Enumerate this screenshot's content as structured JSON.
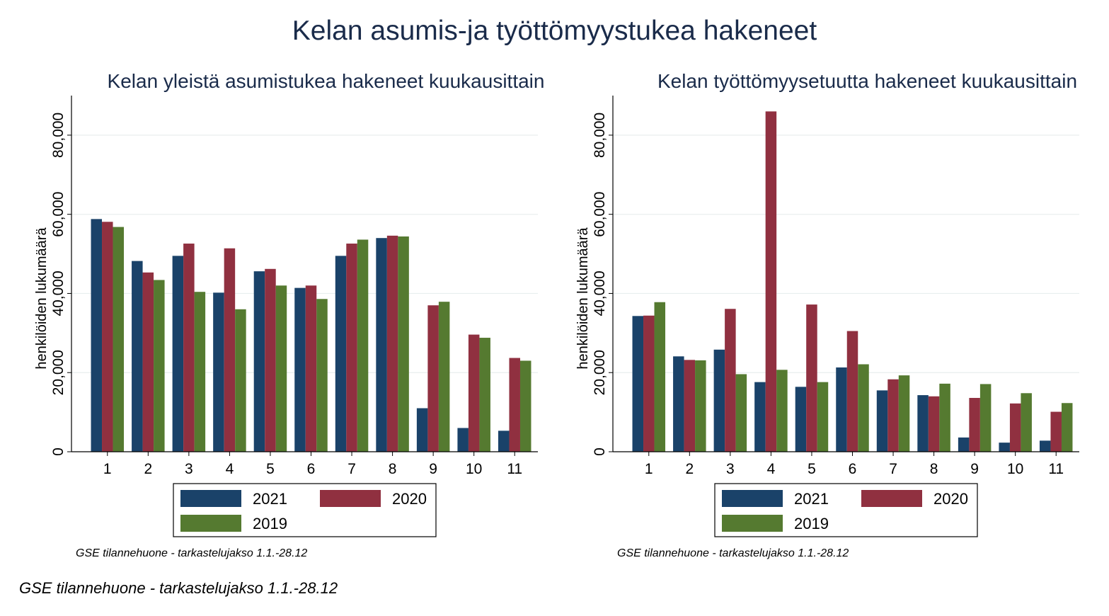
{
  "title": "Kelan asumis-ja työttömyystukea hakeneet",
  "footer_note": "GSE tilannehuone - tarkastelujakso 1.1.-28.12",
  "colors": {
    "2021": "#1a4269",
    "2020": "#903040",
    "2019": "#557a30",
    "grid": "#e8eeee",
    "axis": "#000000"
  },
  "chart_data": [
    {
      "type": "bar",
      "title": "Kelan yleistä asumistukea hakeneet kuukausittain",
      "xlabel": "",
      "ylabel": "henkilöiden lukumäärä",
      "ylim": [
        0,
        90000
      ],
      "yticks": [
        0,
        20000,
        40000,
        60000,
        80000
      ],
      "ytick_labels": [
        "0",
        "20,000",
        "40,000",
        "60,000",
        "80,000"
      ],
      "grid": true,
      "legend_position": "bottom",
      "note": "GSE tilannehuone - tarkastelujakso 1.1.-28.12",
      "categories": [
        "1",
        "2",
        "3",
        "4",
        "5",
        "6",
        "7",
        "8",
        "9",
        "10",
        "11"
      ],
      "series": [
        {
          "name": "2021",
          "values": [
            58800,
            48200,
            49500,
            40200,
            45600,
            41400,
            49500,
            54000,
            11000,
            6000,
            5300
          ]
        },
        {
          "name": "2020",
          "values": [
            58100,
            45300,
            52600,
            51400,
            46200,
            42000,
            52600,
            54600,
            37000,
            29600,
            23700
          ]
        },
        {
          "name": "2019",
          "values": [
            56800,
            43400,
            40400,
            36000,
            42000,
            38600,
            53600,
            54400,
            37900,
            28800,
            23000
          ]
        }
      ]
    },
    {
      "type": "bar",
      "title": "Kelan työttömyysetuutta hakeneet kuukausittain",
      "xlabel": "",
      "ylabel": "henkilöiden lukumäärä",
      "ylim": [
        0,
        90000
      ],
      "yticks": [
        0,
        20000,
        40000,
        60000,
        80000
      ],
      "ytick_labels": [
        "0",
        "20,000",
        "40,000",
        "60,000",
        "80,000"
      ],
      "grid": true,
      "legend_position": "bottom",
      "note": "GSE tilannehuone - tarkastelujakso 1.1.-28.12",
      "categories": [
        "1",
        "2",
        "3",
        "4",
        "5",
        "6",
        "7",
        "8",
        "9",
        "10",
        "11"
      ],
      "series": [
        {
          "name": "2021",
          "values": [
            34300,
            24100,
            25800,
            17600,
            16400,
            21300,
            15500,
            14300,
            3600,
            2300,
            2800
          ]
        },
        {
          "name": "2020",
          "values": [
            34400,
            23200,
            36100,
            86000,
            37200,
            30500,
            18300,
            14000,
            13600,
            12200,
            10100
          ]
        },
        {
          "name": "2019",
          "values": [
            37800,
            23100,
            19600,
            20700,
            17600,
            22100,
            19300,
            17200,
            17100,
            14800,
            12300
          ]
        }
      ]
    }
  ]
}
